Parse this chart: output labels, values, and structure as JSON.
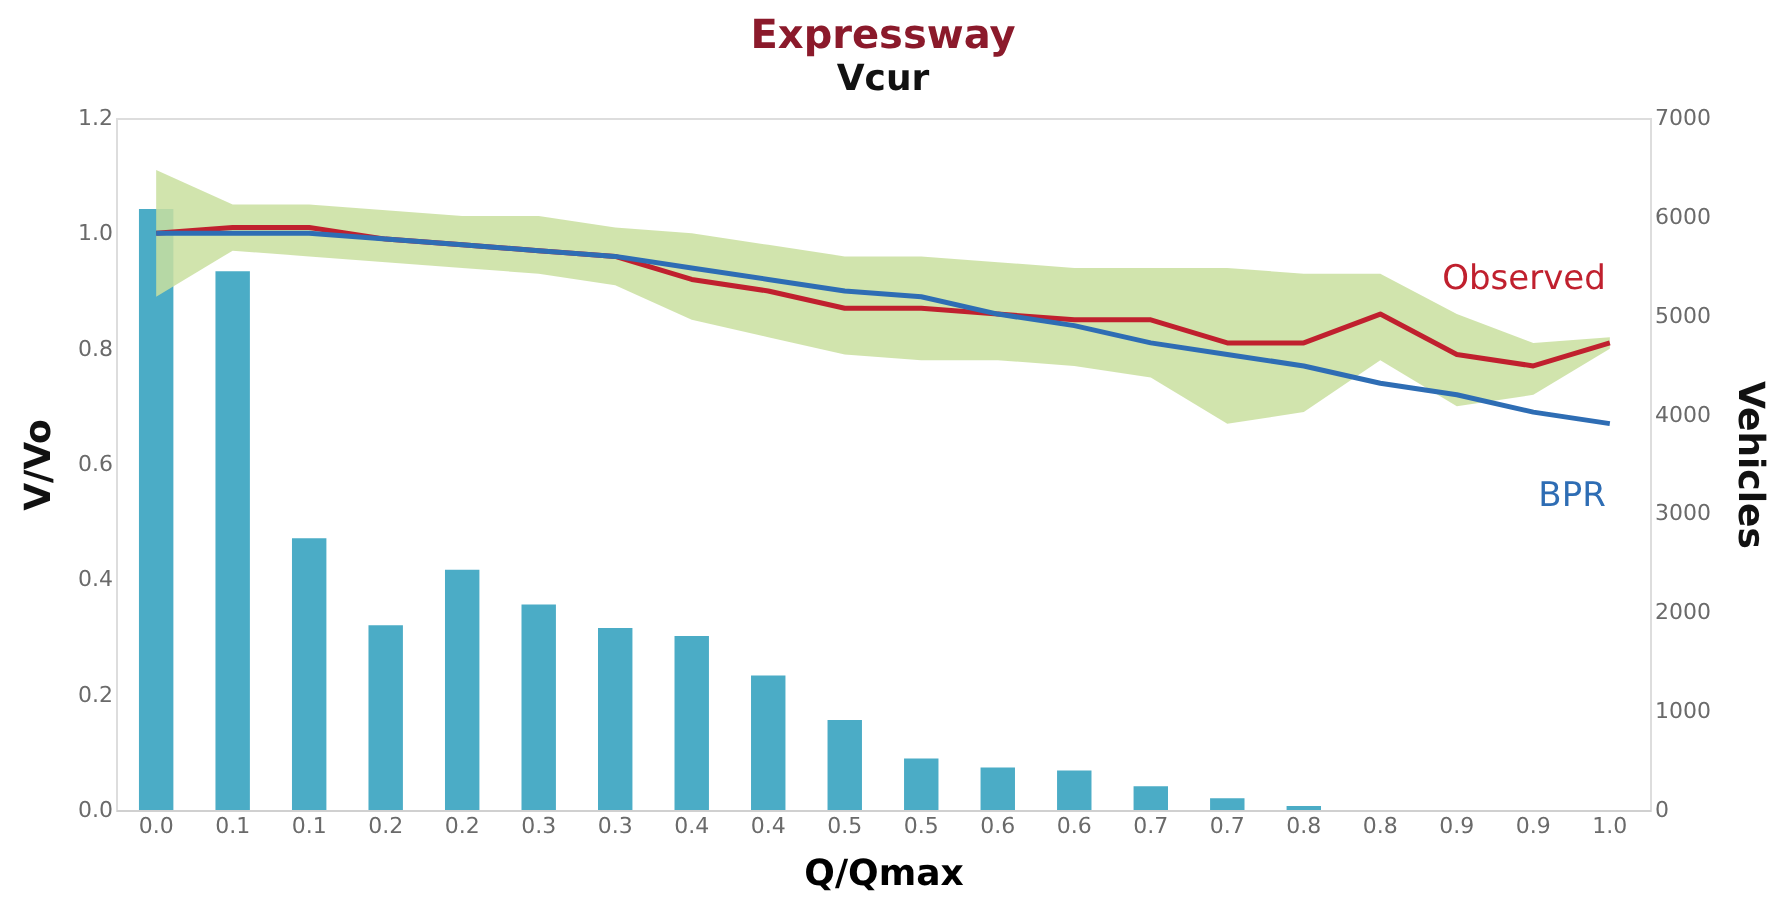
{
  "chart_data": {
    "type": "bar",
    "title": "Expressway",
    "subtitle": "Vcur",
    "xlabel": "Q/Qmax",
    "ylabel": "V/Vo",
    "y2label": "Vehicles",
    "categories": [
      "0.0",
      "0.1",
      "0.1",
      "0.2",
      "0.2",
      "0.3",
      "0.3",
      "0.4",
      "0.4",
      "0.5",
      "0.5",
      "0.6",
      "0.6",
      "0.7",
      "0.7",
      "0.8",
      "0.8",
      "0.9",
      "0.9",
      "1.0"
    ],
    "ylim": [
      0,
      1.2
    ],
    "yticks": [
      {
        "value": 0,
        "label": "0.0"
      },
      {
        "value": 0.2,
        "label": "0.2"
      },
      {
        "value": 0.4,
        "label": "0.4"
      },
      {
        "value": 0.6,
        "label": "0.6"
      },
      {
        "value": 0.8,
        "label": "0.8"
      },
      {
        "value": 1,
        "label": "1.0"
      },
      {
        "value": 1.2,
        "label": "1.2"
      }
    ],
    "y2lim": [
      0,
      7000
    ],
    "y2ticks": [
      0,
      1000,
      2000,
      3000,
      4000,
      5000,
      6000,
      7000
    ],
    "series": [
      {
        "axis": "y2",
        "color": "#4bacc6",
        "values": [
          6080,
          5450,
          2750,
          1870,
          2430,
          2080,
          1840,
          1760,
          1360,
          910,
          520,
          430,
          400,
          240,
          120,
          40,
          0,
          0,
          0,
          0
        ]
      },
      {
        "type": "line",
        "name": "Observed",
        "color": "#c0202e",
        "values": [
          1.0,
          1.01,
          1.01,
          0.99,
          0.98,
          0.97,
          0.96,
          0.92,
          0.9,
          0.87,
          0.87,
          0.86,
          0.85,
          0.85,
          0.81,
          0.81,
          0.86,
          0.79,
          0.77,
          0.81
        ],
        "lower": [
          0.89,
          0.97,
          0.96,
          0.95,
          0.94,
          0.93,
          0.91,
          0.85,
          0.82,
          0.79,
          0.78,
          0.78,
          0.77,
          0.75,
          0.67,
          0.69,
          0.78,
          0.7,
          0.72,
          0.8
        ],
        "upper": [
          1.11,
          1.05,
          1.05,
          1.04,
          1.03,
          1.03,
          1.01,
          1.0,
          0.98,
          0.96,
          0.96,
          0.95,
          0.94,
          0.94,
          0.94,
          0.93,
          0.93,
          0.86,
          0.81,
          0.82
        ]
      },
      {
        "type": "line",
        "name": "BPR",
        "color": "#2e6db4",
        "values": [
          1.0,
          1.0,
          1.0,
          0.99,
          0.98,
          0.97,
          0.96,
          0.94,
          0.92,
          0.9,
          0.89,
          0.86,
          0.84,
          0.81,
          0.79,
          0.77,
          0.74,
          0.72,
          0.69,
          0.67
        ]
      }
    ]
  }
}
